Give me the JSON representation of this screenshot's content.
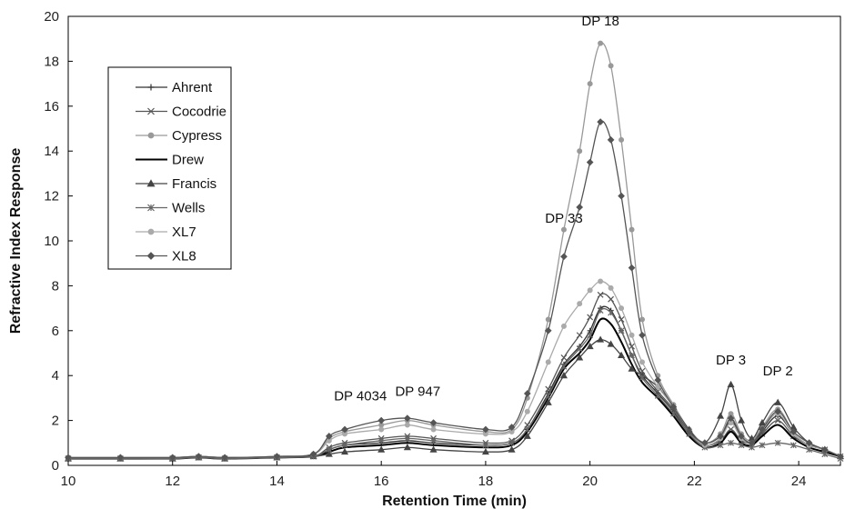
{
  "chart_data": {
    "type": "line",
    "xlabel": "Retention Time (min)",
    "ylabel": "Refractive Index Response",
    "xlim": [
      10,
      24.8
    ],
    "ylim": [
      0,
      20
    ],
    "xticks": [
      10,
      12,
      14,
      16,
      18,
      20,
      22,
      24
    ],
    "yticks": [
      0,
      2,
      4,
      6,
      8,
      10,
      12,
      14,
      16,
      18,
      20
    ],
    "grid": false,
    "legend_position": "top-left",
    "annotations": [
      {
        "text": "DP 4034",
        "x": 15.6,
        "y": 2.9
      },
      {
        "text": "DP 947",
        "x": 16.7,
        "y": 3.1
      },
      {
        "text": "DP 33",
        "x": 19.5,
        "y": 10.8
      },
      {
        "text": "DP 18",
        "x": 20.2,
        "y": 19.6
      },
      {
        "text": "DP 3",
        "x": 22.7,
        "y": 4.5
      },
      {
        "text": "DP 2",
        "x": 23.6,
        "y": 4.0
      }
    ],
    "x": [
      10,
      11,
      12,
      12.5,
      13,
      14,
      14.7,
      15.0,
      15.3,
      16.0,
      16.5,
      17.0,
      18.0,
      18.5,
      18.8,
      19.2,
      19.5,
      19.8,
      20.0,
      20.2,
      20.4,
      20.6,
      20.8,
      21.0,
      21.3,
      21.6,
      21.9,
      22.2,
      22.5,
      22.7,
      22.9,
      23.1,
      23.3,
      23.6,
      23.9,
      24.2,
      24.5,
      24.8
    ],
    "series": [
      {
        "name": "Ahrent",
        "color": "#333333",
        "marker": "plus",
        "values": [
          0.3,
          0.3,
          0.3,
          0.35,
          0.3,
          0.35,
          0.4,
          0.7,
          0.9,
          1.0,
          1.1,
          1.0,
          0.9,
          1.0,
          1.6,
          3.2,
          4.5,
          5.3,
          6.0,
          7.0,
          6.9,
          6.0,
          4.9,
          4.0,
          3.2,
          2.4,
          1.4,
          0.9,
          1.2,
          2.0,
          1.3,
          1.0,
          1.5,
          2.2,
          1.4,
          0.9,
          0.7,
          0.4
        ]
      },
      {
        "name": "Cocodrie",
        "color": "#555555",
        "marker": "x",
        "values": [
          0.3,
          0.3,
          0.3,
          0.35,
          0.3,
          0.35,
          0.4,
          0.8,
          1.0,
          1.2,
          1.3,
          1.2,
          1.0,
          1.1,
          1.8,
          3.4,
          4.8,
          5.8,
          6.6,
          7.6,
          7.4,
          6.5,
          5.3,
          4.2,
          3.3,
          2.5,
          1.5,
          0.9,
          1.1,
          1.6,
          1.1,
          1.0,
          1.4,
          2.0,
          1.3,
          0.9,
          0.7,
          0.4
        ]
      },
      {
        "name": "Cypress",
        "color": "#999999",
        "marker": "circle",
        "values": [
          0.35,
          0.35,
          0.35,
          0.4,
          0.35,
          0.4,
          0.5,
          1.2,
          1.5,
          1.8,
          2.0,
          1.8,
          1.5,
          1.6,
          3.0,
          6.5,
          10.5,
          14.0,
          17.0,
          18.8,
          17.8,
          14.5,
          10.5,
          6.5,
          4.0,
          2.7,
          1.6,
          1.0,
          1.4,
          2.3,
          1.4,
          1.1,
          1.7,
          2.5,
          1.5,
          1.0,
          0.7,
          0.4
        ]
      },
      {
        "name": "Drew",
        "color": "#000000",
        "marker": "none",
        "values": [
          0.3,
          0.3,
          0.3,
          0.35,
          0.3,
          0.35,
          0.4,
          0.6,
          0.8,
          0.9,
          1.0,
          0.9,
          0.8,
          0.9,
          1.5,
          3.0,
          4.3,
          5.0,
          5.6,
          6.5,
          6.3,
          5.5,
          4.5,
          3.7,
          3.0,
          2.2,
          1.3,
          0.8,
          1.0,
          1.5,
          1.0,
          0.9,
          1.3,
          1.8,
          1.2,
          0.8,
          0.6,
          0.4
        ]
      },
      {
        "name": "Francis",
        "color": "#444444",
        "marker": "triangle",
        "values": [
          0.3,
          0.3,
          0.3,
          0.35,
          0.3,
          0.35,
          0.4,
          0.5,
          0.6,
          0.7,
          0.8,
          0.7,
          0.6,
          0.7,
          1.3,
          2.8,
          4.0,
          4.8,
          5.3,
          5.6,
          5.4,
          4.9,
          4.3,
          4.0,
          3.5,
          2.6,
          1.6,
          1.0,
          2.2,
          3.6,
          2.0,
          1.2,
          1.9,
          2.8,
          1.7,
          1.0,
          0.7,
          0.4
        ]
      },
      {
        "name": "Wells",
        "color": "#666666",
        "marker": "star",
        "values": [
          0.3,
          0.3,
          0.3,
          0.35,
          0.3,
          0.35,
          0.4,
          0.7,
          0.9,
          1.1,
          1.2,
          1.1,
          0.9,
          1.0,
          1.6,
          3.1,
          4.4,
          5.2,
          5.8,
          6.9,
          6.8,
          6.0,
          4.9,
          3.9,
          3.1,
          2.3,
          1.4,
          0.8,
          0.9,
          1.0,
          0.9,
          0.8,
          0.9,
          1.0,
          0.9,
          0.7,
          0.5,
          0.3
        ]
      },
      {
        "name": "XL7",
        "color": "#aaaaaa",
        "marker": "circle",
        "values": [
          0.35,
          0.35,
          0.35,
          0.4,
          0.35,
          0.4,
          0.5,
          1.1,
          1.4,
          1.6,
          1.8,
          1.6,
          1.4,
          1.5,
          2.4,
          4.6,
          6.2,
          7.2,
          7.8,
          8.2,
          7.9,
          7.0,
          5.8,
          4.6,
          3.5,
          2.6,
          1.5,
          0.9,
          1.2,
          1.9,
          1.2,
          1.0,
          1.6,
          2.3,
          1.4,
          0.9,
          0.7,
          0.4
        ]
      },
      {
        "name": "XL8",
        "color": "#555555",
        "marker": "diamond",
        "values": [
          0.35,
          0.35,
          0.35,
          0.4,
          0.35,
          0.4,
          0.5,
          1.3,
          1.6,
          2.0,
          2.1,
          1.9,
          1.6,
          1.7,
          3.2,
          6.0,
          9.3,
          11.5,
          13.5,
          15.3,
          14.5,
          12.0,
          8.8,
          5.8,
          3.8,
          2.6,
          1.5,
          1.0,
          1.3,
          2.1,
          1.3,
          1.0,
          1.6,
          2.4,
          1.5,
          1.0,
          0.7,
          0.4
        ]
      }
    ]
  }
}
